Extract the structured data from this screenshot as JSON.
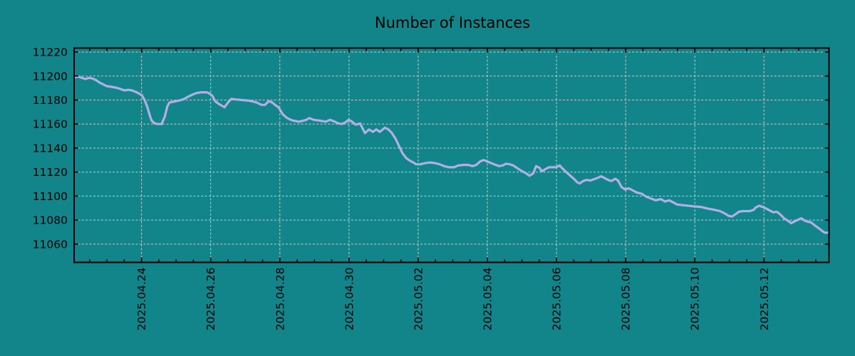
{
  "chart_data": {
    "type": "line",
    "title": "Number of Instances",
    "xlabel": "",
    "ylabel": "",
    "legend": "none",
    "grid": "dashed, at major ticks only",
    "x_axis": {
      "kind": "time",
      "t0_label": "2025.04.24",
      "tick_t": [
        0,
        2,
        4,
        6,
        8,
        10,
        12,
        14,
        16,
        18
      ],
      "tick_labels": [
        "2025.04.24",
        "2025.04.26",
        "2025.04.28",
        "2025.04.30",
        "2025.05.02",
        "2025.05.04",
        "2025.05.06",
        "2025.05.08",
        "2025.05.10",
        "2025.05.12"
      ],
      "minor_tick_step_days": 0.5,
      "xlim_days": [
        -1.95,
        19.88
      ],
      "label_rotation_deg": -90
    },
    "y_axis": {
      "ticks": [
        11060,
        11080,
        11100,
        11120,
        11140,
        11160,
        11180,
        11200,
        11220
      ],
      "ylim": [
        11044.8,
        11223.3
      ]
    },
    "colors": {
      "background": "#12858a",
      "line": "#b3afe6",
      "grid": "#c2cece",
      "axis": "#000000",
      "text": "#000000"
    },
    "series": [
      {
        "name": "instances",
        "points": [
          [
            -1.95,
            11199
          ],
          [
            -1.83,
            11199.5
          ],
          [
            -1.73,
            11198.5
          ],
          [
            -1.62,
            11197.5
          ],
          [
            -1.52,
            11198.5
          ],
          [
            -1.42,
            11198
          ],
          [
            -1.31,
            11196.5
          ],
          [
            -1.21,
            11194.5
          ],
          [
            -1.11,
            11193
          ],
          [
            -1.0,
            11191.5
          ],
          [
            -0.86,
            11191
          ],
          [
            -0.69,
            11190
          ],
          [
            -0.59,
            11189
          ],
          [
            -0.49,
            11188
          ],
          [
            -0.39,
            11188.5
          ],
          [
            -0.28,
            11188
          ],
          [
            -0.18,
            11187
          ],
          [
            -0.08,
            11185.5
          ],
          [
            0.01,
            11184
          ],
          [
            0.09,
            11180
          ],
          [
            0.17,
            11174
          ],
          [
            0.23,
            11168
          ],
          [
            0.29,
            11163
          ],
          [
            0.38,
            11160.5
          ],
          [
            0.48,
            11160
          ],
          [
            0.58,
            11160
          ],
          [
            0.67,
            11166
          ],
          [
            0.75,
            11175
          ],
          [
            0.81,
            11178
          ],
          [
            0.91,
            11178.5
          ],
          [
            1.06,
            11179.5
          ],
          [
            1.2,
            11180.5
          ],
          [
            1.33,
            11182.5
          ],
          [
            1.47,
            11184.5
          ],
          [
            1.61,
            11186
          ],
          [
            1.74,
            11186.5
          ],
          [
            1.88,
            11186.5
          ],
          [
            1.96,
            11185.5
          ],
          [
            2.05,
            11183.5
          ],
          [
            2.13,
            11179
          ],
          [
            2.25,
            11176.5
          ],
          [
            2.4,
            11174
          ],
          [
            2.5,
            11178
          ],
          [
            2.6,
            11181
          ],
          [
            2.73,
            11180.5
          ],
          [
            2.91,
            11180
          ],
          [
            3.12,
            11179.5
          ],
          [
            3.33,
            11178
          ],
          [
            3.47,
            11176
          ],
          [
            3.57,
            11176
          ],
          [
            3.68,
            11179
          ],
          [
            3.78,
            11178
          ],
          [
            3.88,
            11175.5
          ],
          [
            3.96,
            11174
          ],
          [
            4.09,
            11168
          ],
          [
            4.21,
            11165
          ],
          [
            4.36,
            11163
          ],
          [
            4.56,
            11162
          ],
          [
            4.77,
            11163.5
          ],
          [
            4.85,
            11165
          ],
          [
            4.98,
            11163.5
          ],
          [
            5.12,
            11163
          ],
          [
            5.33,
            11162
          ],
          [
            5.45,
            11163.5
          ],
          [
            5.59,
            11162
          ],
          [
            5.7,
            11160.5
          ],
          [
            5.8,
            11160
          ],
          [
            5.9,
            11161.5
          ],
          [
            5.99,
            11163.5
          ],
          [
            6.09,
            11162
          ],
          [
            6.19,
            11159.5
          ],
          [
            6.32,
            11160.5
          ],
          [
            6.46,
            11152.5
          ],
          [
            6.58,
            11155.5
          ],
          [
            6.69,
            11153.5
          ],
          [
            6.79,
            11155.5
          ],
          [
            6.89,
            11153.5
          ],
          [
            7.04,
            11157
          ],
          [
            7.14,
            11155.5
          ],
          [
            7.24,
            11152.5
          ],
          [
            7.35,
            11147.5
          ],
          [
            7.45,
            11141.5
          ],
          [
            7.55,
            11135.5
          ],
          [
            7.66,
            11131.5
          ],
          [
            7.76,
            11129.5
          ],
          [
            7.86,
            11128
          ],
          [
            7.94,
            11126.5
          ],
          [
            8.07,
            11126.5
          ],
          [
            8.21,
            11127.5
          ],
          [
            8.34,
            11128
          ],
          [
            8.48,
            11127.5
          ],
          [
            8.62,
            11126.5
          ],
          [
            8.75,
            11125
          ],
          [
            8.89,
            11124
          ],
          [
            9.04,
            11124
          ],
          [
            9.16,
            11125.5
          ],
          [
            9.31,
            11126
          ],
          [
            9.45,
            11126
          ],
          [
            9.57,
            11125
          ],
          [
            9.68,
            11126
          ],
          [
            9.8,
            11129
          ],
          [
            9.9,
            11130
          ],
          [
            10.03,
            11128.5
          ],
          [
            10.19,
            11126.5
          ],
          [
            10.34,
            11125
          ],
          [
            10.44,
            11125.5
          ],
          [
            10.54,
            11127
          ],
          [
            10.65,
            11126.5
          ],
          [
            10.75,
            11125.5
          ],
          [
            10.96,
            11121.5
          ],
          [
            11.12,
            11119
          ],
          [
            11.22,
            11117
          ],
          [
            11.33,
            11119
          ],
          [
            11.41,
            11125
          ],
          [
            11.51,
            11123.5
          ],
          [
            11.57,
            11120.5
          ],
          [
            11.68,
            11122.5
          ],
          [
            11.78,
            11124
          ],
          [
            11.88,
            11124
          ],
          [
            11.99,
            11124
          ],
          [
            12.09,
            11125.5
          ],
          [
            12.19,
            11122.5
          ],
          [
            12.3,
            11119.5
          ],
          [
            12.4,
            11117
          ],
          [
            12.5,
            11114.5
          ],
          [
            12.6,
            11111.5
          ],
          [
            12.67,
            11110.5
          ],
          [
            12.77,
            11112.5
          ],
          [
            12.87,
            11113.5
          ],
          [
            12.98,
            11113
          ],
          [
            13.08,
            11114
          ],
          [
            13.18,
            11115
          ],
          [
            13.29,
            11116.5
          ],
          [
            13.39,
            11115
          ],
          [
            13.49,
            11113.5
          ],
          [
            13.59,
            11112.5
          ],
          [
            13.7,
            11114.5
          ],
          [
            13.78,
            11113
          ],
          [
            13.88,
            11107.5
          ],
          [
            13.99,
            11105.5
          ],
          [
            14.09,
            11106.5
          ],
          [
            14.19,
            11105
          ],
          [
            14.32,
            11103
          ],
          [
            14.46,
            11102
          ],
          [
            14.6,
            11099.5
          ],
          [
            14.73,
            11098
          ],
          [
            14.87,
            11096.5
          ],
          [
            15.02,
            11097.5
          ],
          [
            15.14,
            11095.5
          ],
          [
            15.26,
            11096.5
          ],
          [
            15.39,
            11094.5
          ],
          [
            15.49,
            11093
          ],
          [
            15.63,
            11092.5
          ],
          [
            15.8,
            11092
          ],
          [
            15.96,
            11091.5
          ],
          [
            16.17,
            11091
          ],
          [
            16.38,
            11089.5
          ],
          [
            16.58,
            11088.5
          ],
          [
            16.73,
            11087.5
          ],
          [
            16.87,
            11085.5
          ],
          [
            16.98,
            11083.5
          ],
          [
            17.08,
            11083
          ],
          [
            17.18,
            11085
          ],
          [
            17.28,
            11087
          ],
          [
            17.39,
            11087.5
          ],
          [
            17.49,
            11087.5
          ],
          [
            17.59,
            11087.5
          ],
          [
            17.7,
            11088.5
          ],
          [
            17.76,
            11090.5
          ],
          [
            17.86,
            11092
          ],
          [
            17.96,
            11091
          ],
          [
            18.07,
            11089.5
          ],
          [
            18.17,
            11088
          ],
          [
            18.27,
            11086.5
          ],
          [
            18.37,
            11087
          ],
          [
            18.48,
            11084.5
          ],
          [
            18.58,
            11081.5
          ],
          [
            18.69,
            11079.5
          ],
          [
            18.79,
            11077.5
          ],
          [
            18.89,
            11079
          ],
          [
            19.0,
            11080.5
          ],
          [
            19.08,
            11081.5
          ],
          [
            19.18,
            11079.5
          ],
          [
            19.29,
            11078.5
          ],
          [
            19.37,
            11078
          ],
          [
            19.47,
            11075.5
          ],
          [
            19.57,
            11073.5
          ],
          [
            19.68,
            11071
          ],
          [
            19.76,
            11069.5
          ],
          [
            19.88,
            11069.5
          ]
        ]
      }
    ]
  }
}
